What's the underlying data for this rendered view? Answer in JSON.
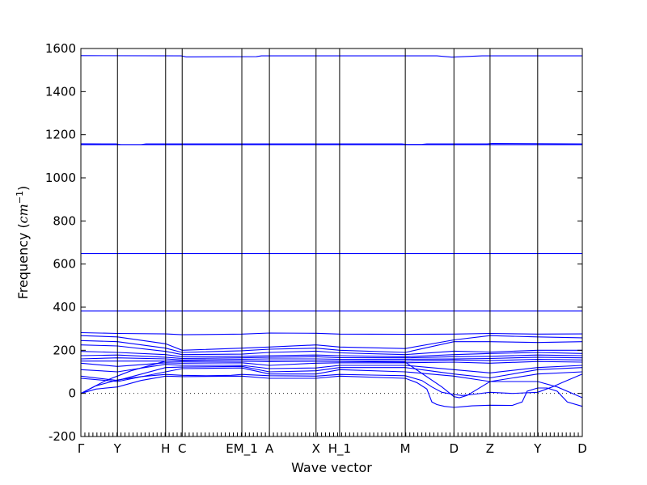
{
  "chart_data": {
    "type": "line",
    "xlabel": "Wave vector",
    "ylabel": "Frequency (cm⁻¹)",
    "ylabel_parts": {
      "main": "Frequency (",
      "unit": "cm",
      "exp": "−1",
      "close": ")"
    },
    "ylim": [
      -200,
      1600
    ],
    "yticks": [
      -200,
      0,
      200,
      400,
      600,
      800,
      1000,
      1200,
      1400,
      1600
    ],
    "xlim": [
      0,
      100
    ],
    "grid": false,
    "legend": "none",
    "color": "#0000ff",
    "x_labels": [
      {
        "label": "Γ",
        "x": 0
      },
      {
        "label": "Y",
        "x": 7.3
      },
      {
        "label": "H",
        "x": 16.9
      },
      {
        "label": "C",
        "x": 20.2
      },
      {
        "label": "EM_1",
        "x": 32.1
      },
      {
        "label": "A",
        "x": 37.6
      },
      {
        "label": "X",
        "x": 46.9
      },
      {
        "label": "H_1",
        "x": 51.6
      },
      {
        "label": "M",
        "x": 64.7
      },
      {
        "label": "D",
        "x": 74.4
      },
      {
        "label": "Z",
        "x": 81.6
      },
      {
        "label": "Y",
        "x": 91.1
      },
      {
        "label": "D",
        "x": 100
      }
    ],
    "series": [
      {
        "x": [
          0,
          20,
          21,
          35,
          36,
          64,
          65,
          71,
          74,
          80,
          100
        ],
        "values": [
          1567,
          1566,
          1561,
          1562,
          1566,
          1566,
          1566,
          1566,
          1560,
          1566,
          1566
        ]
      },
      {
        "x": [
          0,
          7,
          8,
          12,
          13,
          64,
          65,
          68,
          69,
          81,
          82,
          100
        ],
        "values": [
          1158,
          1157,
          1154,
          1154,
          1157,
          1157,
          1155,
          1155,
          1157,
          1157,
          1159,
          1157
        ]
      },
      {
        "x": [
          0,
          100
        ],
        "values": [
          1154,
          1154
        ]
      },
      {
        "x": [
          0,
          100
        ],
        "values": [
          649,
          649
        ]
      },
      {
        "x": [
          0,
          100
        ],
        "values": [
          382,
          382
        ]
      },
      {
        "x": [
          0,
          7.3,
          16.9,
          20.2,
          32.1,
          37.6,
          46.9,
          51.6,
          64.7,
          74.4,
          81.6,
          91.1,
          100
        ],
        "values": [
          282,
          278,
          276,
          272,
          275,
          280,
          279,
          275,
          274,
          275,
          278,
          275,
          276
        ]
      },
      {
        "x": [
          0,
          7.3,
          16.9,
          20.2,
          32.1,
          37.6,
          46.9,
          51.6,
          64.7,
          74.4,
          81.6,
          91.1,
          100
        ],
        "values": [
          268,
          262,
          230,
          200,
          210,
          215,
          225,
          215,
          208,
          248,
          268,
          262,
          258
        ]
      },
      {
        "x": [
          0,
          7.3,
          16.9,
          20.2,
          32.1,
          37.6,
          46.9,
          51.6,
          64.7,
          74.4,
          81.6,
          91.1,
          100
        ],
        "values": [
          245,
          240,
          210,
          190,
          198,
          205,
          210,
          200,
          190,
          240,
          240,
          236,
          240
        ]
      },
      {
        "x": [
          0,
          7.3,
          16.9,
          20.2,
          32.1,
          37.6,
          46.9,
          51.6,
          64.7,
          74.4,
          81.6,
          91.1,
          100
        ],
        "values": [
          225,
          220,
          195,
          180,
          182,
          190,
          196,
          188,
          180,
          196,
          192,
          200,
          200
        ]
      },
      {
        "x": [
          0,
          7.3,
          16.9,
          20.2,
          32.1,
          37.6,
          46.9,
          51.6,
          64.7,
          74.4,
          81.6,
          91.1,
          100
        ],
        "values": [
          195,
          190,
          180,
          170,
          172,
          175,
          178,
          175,
          170,
          180,
          185,
          190,
          185
        ]
      },
      {
        "x": [
          0,
          7.3,
          16.9,
          20.2,
          32.1,
          37.6,
          46.9,
          51.6,
          64.7,
          74.4,
          81.6,
          91.1,
          100
        ],
        "values": [
          175,
          178,
          168,
          162,
          165,
          168,
          170,
          166,
          165,
          170,
          172,
          178,
          175
        ]
      },
      {
        "x": [
          0,
          7.3,
          16.9,
          20.2,
          32.1,
          37.6,
          46.9,
          51.6,
          64.7,
          74.4,
          81.6,
          91.1,
          100
        ],
        "values": [
          160,
          165,
          160,
          155,
          158,
          160,
          160,
          158,
          158,
          160,
          162,
          168,
          165
        ]
      },
      {
        "x": [
          0,
          7.3,
          16.9,
          20.2,
          32.1,
          37.6,
          46.9,
          51.6,
          64.7,
          74.4,
          81.6,
          91.1,
          100
        ],
        "values": [
          150,
          150,
          150,
          148,
          150,
          148,
          150,
          150,
          150,
          155,
          152,
          158,
          155
        ]
      },
      {
        "x": [
          0,
          7.3,
          16.9,
          20.2,
          32.1,
          37.6,
          46.9,
          51.6,
          64.7,
          74.4,
          81.6,
          91.1,
          100
        ],
        "values": [
          140,
          125,
          142,
          140,
          142,
          130,
          140,
          142,
          142,
          145,
          140,
          148,
          145
        ]
      },
      {
        "x": [
          0,
          7.3,
          16.9,
          20.2,
          32.1,
          37.6,
          46.9,
          51.6,
          64.7,
          74.4,
          81.6,
          91.1,
          100
        ],
        "values": [
          110,
          100,
          135,
          130,
          130,
          115,
          118,
          130,
          130,
          110,
          95,
          120,
          130
        ]
      },
      {
        "x": [
          0,
          7.3,
          16.9,
          20.2,
          32.1,
          37.6,
          46.9,
          51.6,
          64.7,
          74.4,
          81.6,
          91.1,
          100
        ],
        "values": [
          80,
          60,
          120,
          122,
          125,
          100,
          105,
          120,
          120,
          90,
          72,
          110,
          120
        ]
      },
      {
        "x": [
          0,
          7.3,
          16.9,
          20.2,
          32.1,
          37.6,
          46.9,
          51.6,
          64.7,
          74.4,
          81.6,
          91.1,
          100
        ],
        "values": [
          70,
          55,
          100,
          115,
          118,
          90,
          90,
          110,
          100,
          80,
          55,
          90,
          100
        ]
      },
      {
        "x": [
          0,
          3,
          7.3,
          12,
          16.9,
          20.2,
          25,
          30,
          32.1,
          37.6,
          46.9,
          51.6,
          58,
          64.7,
          68,
          70,
          72,
          74.4,
          76,
          78,
          81.6,
          86,
          91.1,
          94,
          96,
          100
        ],
        "values": [
          0,
          35,
          62,
          78,
          88,
          84,
          82,
          84,
          88,
          82,
          80,
          88,
          85,
          82,
          60,
          30,
          5,
          -5,
          -10,
          -5,
          5,
          0,
          5,
          30,
          50,
          90
        ]
      },
      {
        "x": [
          0,
          3,
          7.3,
          12,
          16.9,
          20.2,
          32.1,
          37.6,
          46.9,
          51.6,
          64.7,
          67,
          69,
          70,
          71,
          72.5,
          74.4,
          76,
          78,
          81.6,
          86,
          88,
          89,
          91.1,
          93,
          95,
          97,
          100
        ],
        "values": [
          0,
          20,
          30,
          60,
          80,
          78,
          80,
          70,
          70,
          80,
          70,
          50,
          20,
          -40,
          -52,
          -60,
          -65,
          -62,
          -58,
          -55,
          -56,
          -40,
          10,
          25,
          25,
          10,
          -40,
          -60
        ]
      },
      {
        "x": [
          0,
          5,
          10,
          16.9,
          32.1,
          46.9,
          64.7,
          72,
          74.4,
          75.5,
          77,
          81.6,
          91.1,
          95,
          100
        ],
        "values": [
          0,
          60,
          105,
          150,
          150,
          150,
          145,
          30,
          -15,
          -20,
          -10,
          55,
          55,
          30,
          -20
        ]
      }
    ]
  }
}
